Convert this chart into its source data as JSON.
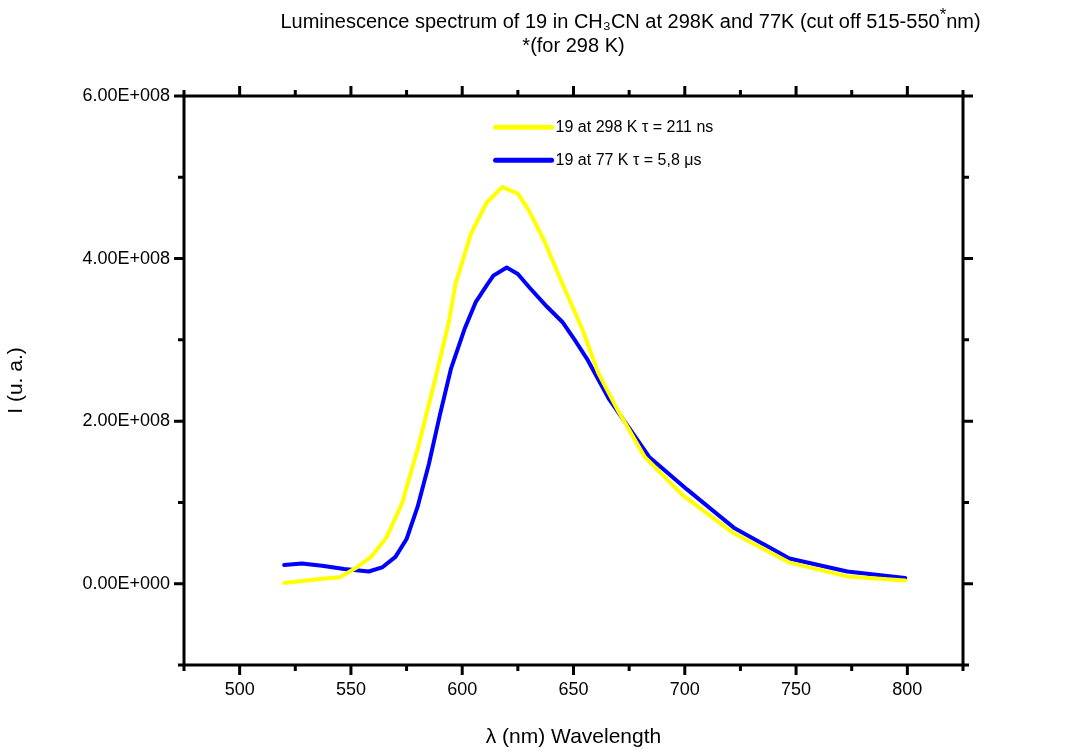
{
  "chart_data": {
    "type": "line",
    "title": "Luminescence spectrum of 19 in CH₃CN at 298K and 77K (cut off 515-550$^{*}$nm)",
    "subtitle": "*(for 298 K)",
    "xlabel": "λ (nm) Wavelength",
    "ylabel": "I (u. a.)",
    "xlim": [
      475,
      825
    ],
    "xticks": [
      {
        "value": 475,
        "label": null
      },
      500,
      {
        "value": 525,
        "label": null
      },
      550,
      {
        "value": 575,
        "label": null
      },
      600,
      {
        "value": 625,
        "label": null
      },
      650,
      {
        "value": 675,
        "label": null
      },
      700,
      {
        "value": 725,
        "label": null
      },
      750,
      {
        "value": 775,
        "label": null
      },
      800,
      {
        "value": 825,
        "label": null
      }
    ],
    "ylim": [
      -100000000,
      600000000
    ],
    "yticks": [
      {
        "value": -100000000,
        "label": null
      },
      {
        "value": 0,
        "label": "0.00E+000"
      },
      {
        "value": 100000000,
        "label": null
      },
      {
        "value": 200000000,
        "label": "2.00E+008"
      },
      {
        "value": 300000000,
        "label": null
      },
      {
        "value": 400000000,
        "label": "4.00E+008"
      },
      {
        "value": 500000000,
        "label": null
      },
      {
        "value": 600000000,
        "label": "6.00E+008"
      }
    ],
    "grid": false,
    "legend": "top",
    "marker": "none",
    "line_style": "solid",
    "series": [
      {
        "name": "19 at 298 K τ = 211 ns",
        "color": "#ffff00",
        "x": [
          520,
          537,
          545,
          552,
          559,
          566,
          573,
          580,
          587,
          594,
          597,
          604,
          611,
          618,
          625,
          630,
          637,
          645,
          654,
          661,
          670,
          682,
          699,
          722,
          747,
          773,
          799
        ],
        "values": [
          1000000,
          6000000,
          8000000,
          19000000,
          33000000,
          57000000,
          99000000,
          166000000,
          242000000,
          322000000,
          369000000,
          431000000,
          469000000,
          488000000,
          480000000,
          459000000,
          421000000,
          369000000,
          313000000,
          260000000,
          213000000,
          156000000,
          109000000,
          62000000,
          26000000,
          9000000,
          4000000
        ]
      },
      {
        "name": "19 at 77 K τ = 5,8 μs",
        "color": "#0000ff",
        "x": [
          520,
          528,
          537,
          547,
          558,
          564,
          570,
          575,
          580,
          585,
          590,
          595,
          601,
          606,
          611,
          614,
          620,
          625,
          630,
          638,
          645,
          651,
          656,
          666,
          684,
          701,
          722,
          747,
          773,
          799
        ],
        "values": [
          23000000,
          25000000,
          22000000,
          18000000,
          15000000,
          20000000,
          33000000,
          55000000,
          95000000,
          147000000,
          208000000,
          265000000,
          313000000,
          346000000,
          367000000,
          379000000,
          389000000,
          381000000,
          365000000,
          341000000,
          322000000,
          298000000,
          277000000,
          227000000,
          156000000,
          116000000,
          69000000,
          31000000,
          15000000,
          7000000
        ]
      }
    ]
  }
}
